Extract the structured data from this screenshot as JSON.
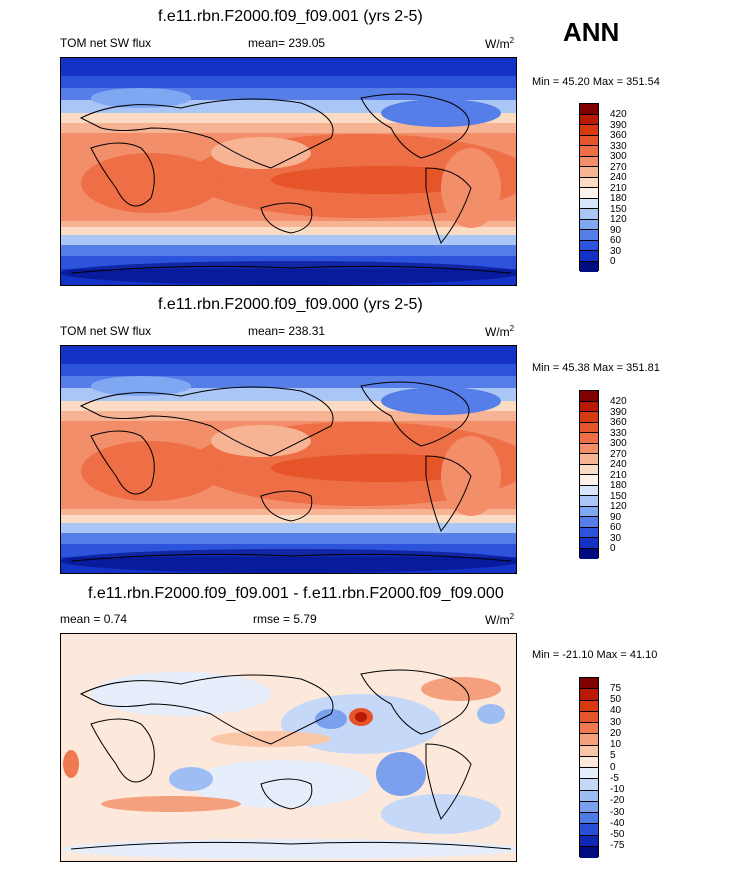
{
  "figure": {
    "season_label": "ANN"
  },
  "panels": [
    {
      "title": "f.e11.rbn.F2000.f09_f09.001 (yrs 2-5)",
      "left_label": "TOM net SW flux",
      "center_label": "mean= 239.05",
      "units_base": "W/m",
      "units_sup": "2",
      "minmax": "Min =  45.20 Max = 351.54",
      "colorbar": {
        "labels": [
          "420",
          "390",
          "360",
          "330",
          "300",
          "270",
          "240",
          "210",
          "180",
          "150",
          "120",
          "90",
          "60",
          "30",
          "0"
        ],
        "colors": [
          "#800000",
          "#b81a05",
          "#d63a10",
          "#e6552a",
          "#ee6e45",
          "#f28e6a",
          "#f7b494",
          "#fadbc3",
          "#fdf3ea",
          "#d7e6fb",
          "#aac6f6",
          "#7fa7f2",
          "#557ee8",
          "#2d52dc",
          "#1432c6",
          "#000b82"
        ]
      }
    },
    {
      "title": "f.e11.rbn.F2000.f09_f09.000 (yrs 2-5)",
      "left_label": "TOM net SW flux",
      "center_label": "mean= 238.31",
      "units_base": "W/m",
      "units_sup": "2",
      "minmax": "Min =  45.38 Max = 351.81",
      "colorbar": {
        "labels": [
          "420",
          "390",
          "360",
          "330",
          "300",
          "270",
          "240",
          "210",
          "180",
          "150",
          "120",
          "90",
          "60",
          "30",
          "0"
        ],
        "colors": [
          "#800000",
          "#b81a05",
          "#d63a10",
          "#e6552a",
          "#ee6e45",
          "#f28e6a",
          "#f7b494",
          "#fadbc3",
          "#fdf3ea",
          "#d7e6fb",
          "#aac6f6",
          "#7fa7f2",
          "#557ee8",
          "#2d52dc",
          "#1432c6",
          "#000b82"
        ]
      }
    },
    {
      "title": "f.e11.rbn.F2000.f09_f09.001 - f.e11.rbn.F2000.f09_f09.000",
      "left_label": "mean =   0.74",
      "center_label": "rmse =   5.79",
      "units_base": "W/m",
      "units_sup": "2",
      "minmax": "Min = -21.10 Max =  41.10",
      "colorbar": {
        "labels": [
          "75",
          "50",
          "40",
          "30",
          "20",
          "10",
          "5",
          "0",
          "-5",
          "-10",
          "-20",
          "-30",
          "-40",
          "-50",
          "-75"
        ],
        "colors": [
          "#800000",
          "#b81a05",
          "#d63a10",
          "#e6552a",
          "#f07a50",
          "#f5a07c",
          "#f9c6a8",
          "#fde8dc",
          "#e6eefc",
          "#c6d8f8",
          "#9ebdf3",
          "#7aa0ee",
          "#4f7be4",
          "#2850d6",
          "#1028b4",
          "#000b82"
        ]
      }
    }
  ]
}
